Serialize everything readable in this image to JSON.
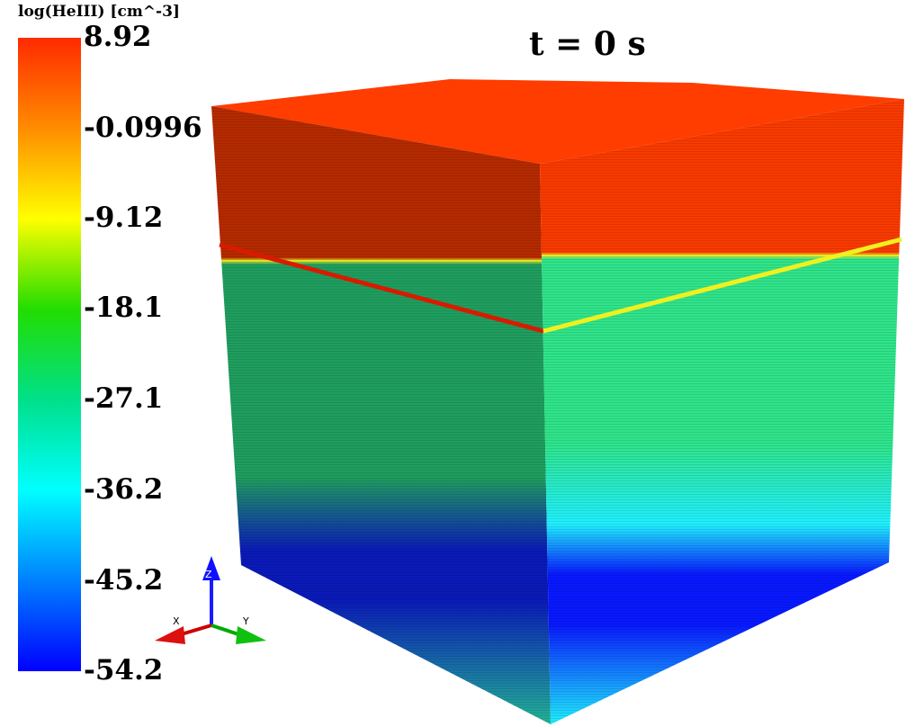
{
  "chart_data": {
    "type": "heatmap",
    "title": "t = 0 s",
    "variable_label": "log(HeIII) [cm^-3]",
    "colorbar": {
      "min": -54.2,
      "max": 8.92,
      "ticks": [
        "8.92",
        "-0.0996",
        "-9.12",
        "-18.1",
        "-27.1",
        "-36.2",
        "-45.2",
        "-54.2"
      ],
      "tick_values": [
        8.92,
        -0.0996,
        -9.12,
        -18.1,
        -27.1,
        -36.2,
        -45.2,
        -54.2
      ],
      "colors_top_to_bottom": [
        "#ff2a00",
        "#ff8c00",
        "#ffff00",
        "#22dd00",
        "#00e08a",
        "#00ffff",
        "#0080ff",
        "#0000ff"
      ]
    },
    "volume": {
      "upper_layer_value": 8.92,
      "mid_layer_value": -27.1,
      "dip_layer_value": -54.2,
      "bottom_layer_value": -36.2,
      "colors": {
        "top_face": "#ff3d00",
        "left_upper": "#b52a00",
        "right_upper": "#f93a00",
        "interface": "#f0f020",
        "left_mid": "#1f9e5f",
        "right_mid": "#2fe48a",
        "left_dip": "#0a1ab8",
        "right_dip": "#0818ff",
        "left_bottom": "#23b496",
        "right_bottom": "#20f0ff"
      }
    },
    "axes": {
      "x_label": "X",
      "y_label": "Y",
      "z_label": "Z"
    }
  }
}
